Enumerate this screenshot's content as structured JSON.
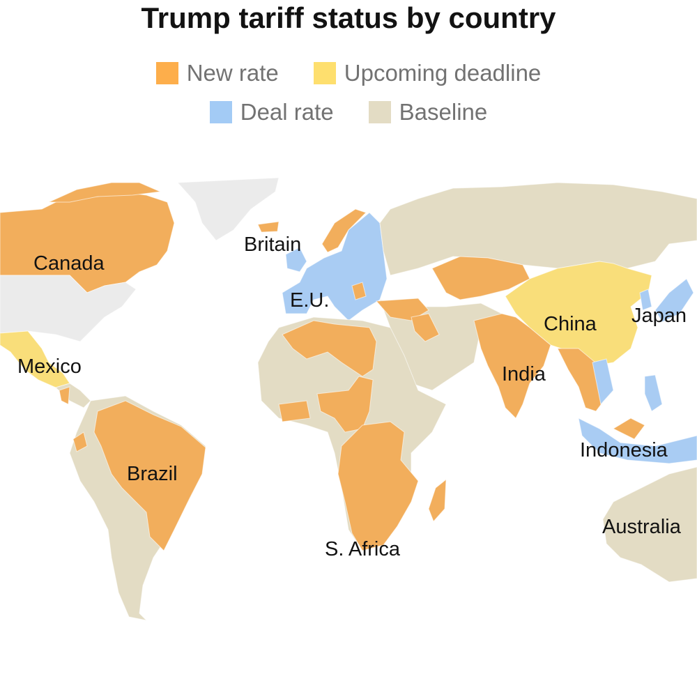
{
  "title": "Trump tariff status by country",
  "legend": [
    {
      "label": "New rate",
      "color": "#fdae4b"
    },
    {
      "label": "Upcoming deadline",
      "color": "#fedf6e"
    },
    {
      "label": "Deal rate",
      "color": "#a3cbf5"
    },
    {
      "label": "Baseline",
      "color": "#e3dcc4"
    }
  ],
  "colors": {
    "new": "#f2ae5c",
    "upcoming": "#f9de7a",
    "deal": "#a9ccf3",
    "baseline": "#e3dcc4",
    "us": "#ebebeb"
  },
  "labels": {
    "canada": "Canada",
    "britain": "Britain",
    "eu": "E.U.",
    "mexico": "Mexico",
    "china": "China",
    "japan": "Japan",
    "india": "India",
    "brazil": "Brazil",
    "indonesia": "Indonesia",
    "s_africa": "S. Africa",
    "australia": "Australia"
  },
  "chart_data": {
    "type": "map",
    "title": "Trump tariff status by country",
    "categories": [
      "New rate",
      "Upcoming deadline",
      "Deal rate",
      "Baseline"
    ],
    "countries": [
      {
        "name": "Canada",
        "status": "New rate"
      },
      {
        "name": "Britain",
        "status": "Deal rate"
      },
      {
        "name": "E.U.",
        "status": "Deal rate"
      },
      {
        "name": "Mexico",
        "status": "Upcoming deadline"
      },
      {
        "name": "China",
        "status": "Upcoming deadline"
      },
      {
        "name": "Japan",
        "status": "Deal rate"
      },
      {
        "name": "India",
        "status": "New rate"
      },
      {
        "name": "Brazil",
        "status": "New rate"
      },
      {
        "name": "Indonesia",
        "status": "Deal rate"
      },
      {
        "name": "S. Africa",
        "status": "New rate"
      },
      {
        "name": "Australia",
        "status": "Baseline"
      }
    ]
  }
}
